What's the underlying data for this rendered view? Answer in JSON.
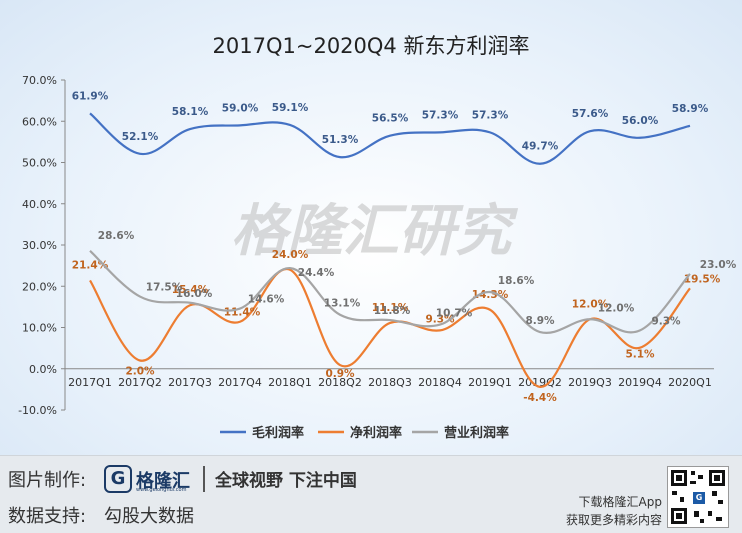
{
  "chart_data": {
    "type": "line",
    "title": "2017Q1~2020Q4  新东方利润率",
    "categories": [
      "2017Q1",
      "2017Q2",
      "2017Q3",
      "2017Q4",
      "2018Q1",
      "2018Q2",
      "2018Q3",
      "2018Q4",
      "2019Q1",
      "2019Q2",
      "2019Q3",
      "2019Q4",
      "2020Q1"
    ],
    "yticks": [
      "70.0%",
      "60.0%",
      "50.0%",
      "40.0%",
      "30.0%",
      "20.0%",
      "10.0%",
      "0.0%",
      "-10.0%"
    ],
    "ylim": [
      -10,
      70
    ],
    "grid": false,
    "legend_position": "bottom",
    "series": [
      {
        "name": "毛利润率",
        "color": "#4472c4",
        "values": [
          61.9,
          52.1,
          58.1,
          59.0,
          59.1,
          51.3,
          56.5,
          57.3,
          57.3,
          49.7,
          57.6,
          56.0,
          58.9
        ],
        "labels": [
          "61.9%",
          "52.1%",
          "58.1%",
          "59.0%",
          "59.1%",
          "51.3%",
          "56.5%",
          "57.3%",
          "57.3%",
          "49.7%",
          "57.6%",
          "56.0%",
          "58.9%"
        ]
      },
      {
        "name": "净利润率",
        "color": "#ed7d31",
        "values": [
          21.4,
          2.0,
          15.4,
          11.4,
          24.0,
          0.9,
          11.1,
          9.3,
          14.3,
          -4.4,
          12.0,
          5.1,
          19.5
        ],
        "labels": [
          "21.4%",
          "2.0%",
          "15.4%",
          "11.4%",
          "24.0%",
          "0.9%",
          "11.1%",
          "9.3%",
          "14.3%",
          "-4.4%",
          "12.0%",
          "5.1%",
          "19.5%"
        ]
      },
      {
        "name": "营业利润率",
        "color": "#a5a5a5",
        "values": [
          28.6,
          17.5,
          16.0,
          14.6,
          24.4,
          13.1,
          11.8,
          10.7,
          18.6,
          8.9,
          12.0,
          9.3,
          23.0
        ],
        "labels": [
          "28.6%",
          "17.5%",
          "16.0%",
          "14.6%",
          "24.4%",
          "13.1%",
          "11.8%",
          "10.7%",
          "18.6%",
          "8.9%",
          "12.0%",
          "9.3%",
          "23.0%"
        ]
      }
    ]
  },
  "watermark": "格隆汇研究",
  "footer": {
    "made_by_label": "图片制作:",
    "brand_name": "格隆汇",
    "brand_icon": "G",
    "brand_url": "www.gelonghui.com",
    "slogan": "全球视野 下注中国",
    "data_support_label": "数据支持:",
    "data_source": "勾股大数据",
    "download_line1": "下载格隆汇App",
    "download_line2": "获取更多精彩内容"
  }
}
